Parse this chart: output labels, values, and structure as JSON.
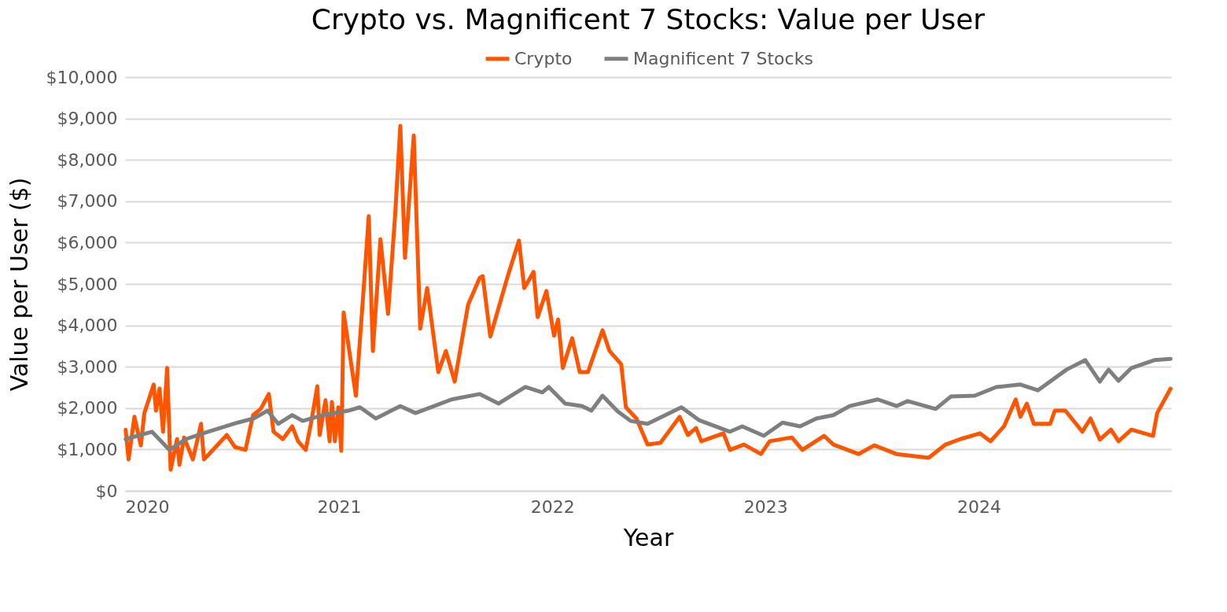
{
  "chart_data": {
    "type": "line",
    "title": "Crypto vs. Magnificent 7 Stocks: Value per User",
    "xlabel": "Year",
    "ylabel": "Value per User ($)",
    "series": [
      {
        "name": "Crypto",
        "color": "#ff5500",
        "x": [
          "2020-01-02",
          "2020-01-07",
          "2020-01-17",
          "2020-01-28",
          "2020-02-03",
          "2020-02-19",
          "2020-02-23",
          "2020-02-29",
          "2020-03-06",
          "2020-03-13",
          "2020-03-19",
          "2020-03-30",
          "2020-04-03",
          "2020-04-11",
          "2020-04-26",
          "2020-05-10",
          "2020-05-15",
          "2020-05-29",
          "2020-06-23",
          "2020-07-07",
          "2020-07-25",
          "2020-08-07",
          "2020-08-20",
          "2020-09-03",
          "2020-09-11",
          "2020-09-27",
          "2020-10-13",
          "2020-10-23",
          "2020-11-05",
          "2020-11-14",
          "2020-11-25",
          "2020-11-29",
          "2020-12-09",
          "2020-12-16",
          "2020-12-20",
          "2020-12-25",
          "2020-12-31",
          "2021-01-05",
          "2021-01-09",
          "2021-01-30",
          "2021-02-12",
          "2021-02-21",
          "2021-02-28",
          "2021-03-13",
          "2021-03-26",
          "2021-04-07",
          "2021-04-16",
          "2021-04-24",
          "2021-05-09",
          "2021-05-20",
          "2021-06-01",
          "2021-06-20",
          "2021-07-03",
          "2021-07-18",
          "2021-08-10",
          "2021-08-30",
          "2021-09-04",
          "2021-09-17",
          "2021-10-16",
          "2021-11-05",
          "2021-11-14",
          "2021-11-30",
          "2021-12-07",
          "2021-12-22",
          "2022-01-04",
          "2022-01-11",
          "2022-01-19",
          "2022-02-04",
          "2022-02-17",
          "2022-03-03",
          "2022-03-28",
          "2022-04-09",
          "2022-04-29",
          "2022-05-07",
          "2022-05-25",
          "2022-06-13",
          "2022-07-05",
          "2022-08-07",
          "2022-08-21",
          "2022-09-04",
          "2022-09-13",
          "2022-10-21",
          "2022-11-01",
          "2022-11-25",
          "2022-12-24",
          "2023-01-08",
          "2023-02-15",
          "2023-03-05",
          "2023-04-11",
          "2023-04-27",
          "2023-06-09",
          "2023-07-06",
          "2023-08-13",
          "2023-10-07",
          "2023-11-05",
          "2023-11-30",
          "2024-01-03",
          "2024-01-21",
          "2024-02-13",
          "2024-03-04",
          "2024-03-12",
          "2024-03-23",
          "2024-04-04",
          "2024-05-02",
          "2024-05-10",
          "2024-05-28",
          "2024-06-26",
          "2024-07-10",
          "2024-07-26",
          "2024-08-14",
          "2024-08-27",
          "2024-09-18",
          "2024-10-25",
          "2024-11-01",
          "2024-11-24"
        ],
        "values": [
          1480,
          760,
          1790,
          1100,
          1880,
          2570,
          1940,
          2470,
          1430,
          2970,
          510,
          1250,
          630,
          1290,
          760,
          1620,
          760,
          970,
          1350,
          1060,
          990,
          1830,
          1980,
          2340,
          1430,
          1250,
          1560,
          1200,
          990,
          1620,
          2530,
          1350,
          2190,
          1200,
          2150,
          1200,
          2020,
          970,
          4310,
          2300,
          4830,
          6640,
          3380,
          6080,
          4280,
          6640,
          8820,
          5630,
          8590,
          3920,
          4900,
          2870,
          3380,
          2640,
          4500,
          5150,
          5190,
          3730,
          5150,
          6050,
          4900,
          5290,
          4200,
          4830,
          3750,
          4140,
          2970,
          3690,
          2870,
          2870,
          3880,
          3380,
          3060,
          2020,
          1750,
          1120,
          1160,
          1790,
          1350,
          1520,
          1200,
          1390,
          990,
          1120,
          890,
          1200,
          1290,
          990,
          1330,
          1120,
          890,
          1100,
          890,
          800,
          1120,
          1250,
          1390,
          1200,
          1560,
          2210,
          1790,
          2110,
          1620,
          1620,
          1940,
          1940,
          1430,
          1750,
          1240,
          1480,
          1200,
          1480,
          1330,
          1880,
          2470
        ]
      },
      {
        "name": "Magnificent 7 Stocks",
        "color": "#7f7f7f",
        "x": [
          "2020-01-02",
          "2020-02-16",
          "2020-03-17",
          "2020-04-14",
          "2020-05-22",
          "2020-07-12",
          "2020-08-08",
          "2020-09-01",
          "2020-09-19",
          "2020-10-13",
          "2020-10-31",
          "2020-12-07",
          "2021-01-18",
          "2021-02-06",
          "2021-03-05",
          "2021-04-16",
          "2021-05-12",
          "2021-07-13",
          "2021-08-30",
          "2021-10-01",
          "2021-11-16",
          "2021-12-15",
          "2021-12-26",
          "2022-01-23",
          "2022-02-21",
          "2022-03-09",
          "2022-03-28",
          "2022-04-23",
          "2022-05-15",
          "2022-06-13",
          "2022-08-10",
          "2022-09-09",
          "2022-10-07",
          "2022-11-01",
          "2022-11-22",
          "2022-12-29",
          "2023-01-30",
          "2023-03-01",
          "2023-03-29",
          "2023-04-27",
          "2023-05-25",
          "2023-07-12",
          "2023-08-13",
          "2023-09-01",
          "2023-10-19",
          "2023-11-14",
          "2023-12-25",
          "2024-01-31",
          "2024-03-12",
          "2024-04-11",
          "2024-05-30",
          "2024-07-01",
          "2024-07-26",
          "2024-08-10",
          "2024-08-27",
          "2024-09-18",
          "2024-10-27",
          "2024-11-24"
        ],
        "values": [
          1250,
          1430,
          990,
          1250,
          1430,
          1650,
          1750,
          1940,
          1620,
          1830,
          1690,
          1840,
          1940,
          2020,
          1750,
          2050,
          1880,
          2210,
          2340,
          2110,
          2510,
          2380,
          2510,
          2110,
          2050,
          1940,
          2300,
          1920,
          1690,
          1620,
          2020,
          1710,
          1560,
          1430,
          1560,
          1330,
          1650,
          1560,
          1750,
          1830,
          2050,
          2210,
          2050,
          2170,
          1980,
          2280,
          2300,
          2510,
          2570,
          2430,
          2930,
          3160,
          2640,
          2930,
          2660,
          2970,
          3160,
          3190
        ]
      }
    ],
    "xlim": [
      "2020-01-01",
      "2024-11-25"
    ],
    "xticks": [
      "2020",
      "2021",
      "2022",
      "2023",
      "2024"
    ],
    "ylim": [
      0,
      10000
    ],
    "yticks": [
      {
        "value": 0,
        "label": "$0"
      },
      {
        "value": 1000,
        "label": "$1,000"
      },
      {
        "value": 2000,
        "label": "$2,000"
      },
      {
        "value": 3000,
        "label": "$3,000"
      },
      {
        "value": 4000,
        "label": "$4,000"
      },
      {
        "value": 5000,
        "label": "$5,000"
      },
      {
        "value": 6000,
        "label": "$6,000"
      },
      {
        "value": 7000,
        "label": "$7,000"
      },
      {
        "value": 8000,
        "label": "$8,000"
      },
      {
        "value": 9000,
        "label": "$9,000"
      },
      {
        "value": 10000,
        "label": "$10,000"
      }
    ],
    "grid": "y",
    "legend": "top",
    "marker": "none",
    "line_style": "solid"
  }
}
